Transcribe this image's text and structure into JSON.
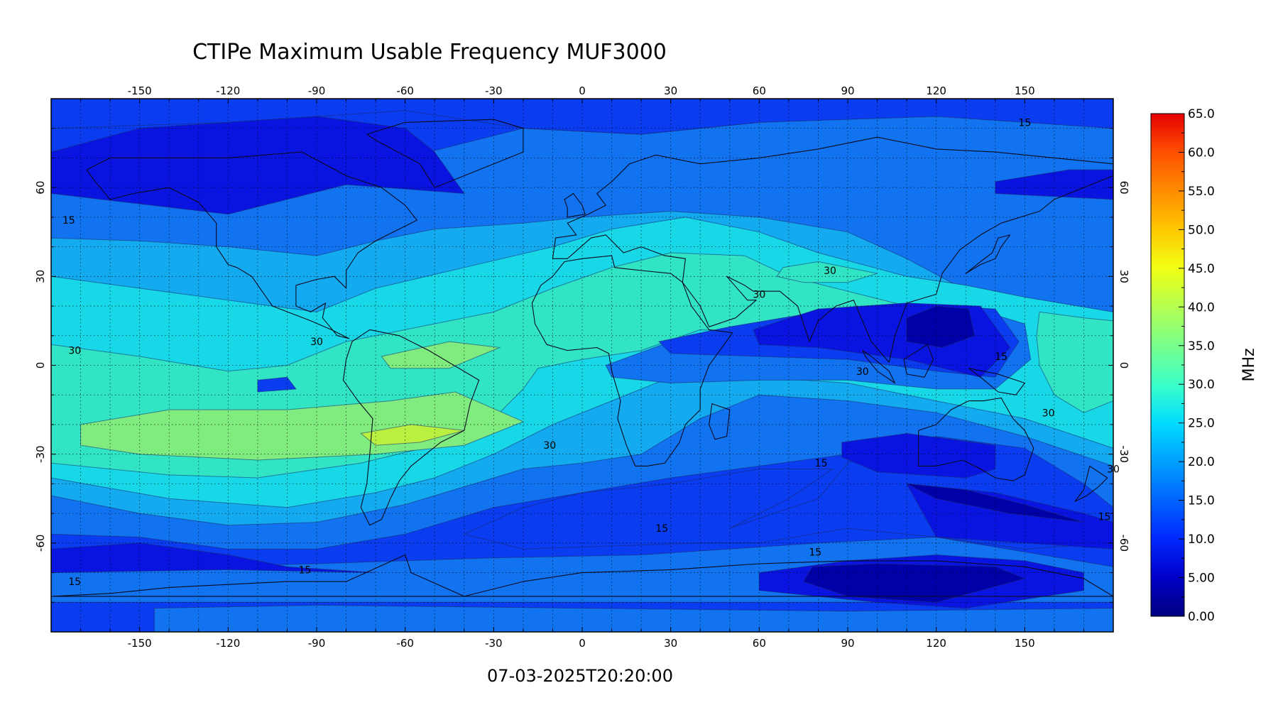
{
  "title": "CTIPe Maximum Usable Frequency MUF3000",
  "timestamp": "07-03-2025T20:20:00",
  "map": {
    "lon_range": [
      -180,
      180
    ],
    "lat_range": [
      -90,
      90
    ],
    "lon_ticks": [
      -150,
      -120,
      -90,
      -60,
      -30,
      0,
      30,
      60,
      90,
      120,
      150
    ],
    "lat_ticks": [
      60,
      30,
      0,
      -30,
      -60
    ],
    "grid": true,
    "contour_labels": [
      {
        "text": "15",
        "lon": 150,
        "lat": 82
      },
      {
        "text": "15",
        "lon": -174,
        "lat": 49
      },
      {
        "text": "30",
        "lon": 84,
        "lat": 32
      },
      {
        "text": "30",
        "lon": 60,
        "lat": 24
      },
      {
        "text": "30",
        "lon": -90,
        "lat": 8
      },
      {
        "text": "30",
        "lon": -172,
        "lat": 5
      },
      {
        "text": "30",
        "lon": 95,
        "lat": -2
      },
      {
        "text": "15",
        "lon": 142,
        "lat": 3
      },
      {
        "text": "30",
        "lon": 158,
        "lat": -16
      },
      {
        "text": "30",
        "lon": -11,
        "lat": -27
      },
      {
        "text": "15",
        "lon": 81,
        "lat": -33
      },
      {
        "text": "30",
        "lon": 180,
        "lat": -35
      },
      {
        "text": "15",
        "lon": 177,
        "lat": -51
      },
      {
        "text": "15",
        "lon": 27,
        "lat": -55
      },
      {
        "text": "15",
        "lon": 79,
        "lat": -63
      },
      {
        "text": "15",
        "lon": -94,
        "lat": -69
      },
      {
        "text": "15",
        "lon": -172,
        "lat": -73
      }
    ]
  },
  "colorbar": {
    "unit": "MHz",
    "range": [
      0,
      65
    ],
    "tick_labels": [
      "65.0",
      "60.0",
      "55.0",
      "50.0",
      "45.0",
      "40.0",
      "35.0",
      "30.0",
      "25.0",
      "20.0",
      "15.0",
      "10.0",
      "5.00",
      "0.00"
    ],
    "colors": [
      "#00007f",
      "#0000c8",
      "#0028ff",
      "#0064ff",
      "#00a0ff",
      "#00dcff",
      "#3cffc8",
      "#78ff8c",
      "#b4ff50",
      "#f0ff14",
      "#ffc800",
      "#ff8c00",
      "#ff5000",
      "#e60000"
    ]
  },
  "field_colors": {
    "mhz_0_5": "#0000a8",
    "mhz_5_10": "#0a14e0",
    "mhz_10_15": "#0a3cf0",
    "mhz_15_20": "#1273f0",
    "mhz_20_25": "#14aaf0",
    "mhz_25_30": "#18d8e8",
    "mhz_30_35": "#30e4c4",
    "mhz_35_40": "#80ec80",
    "mhz_40_45": "#baf040"
  }
}
